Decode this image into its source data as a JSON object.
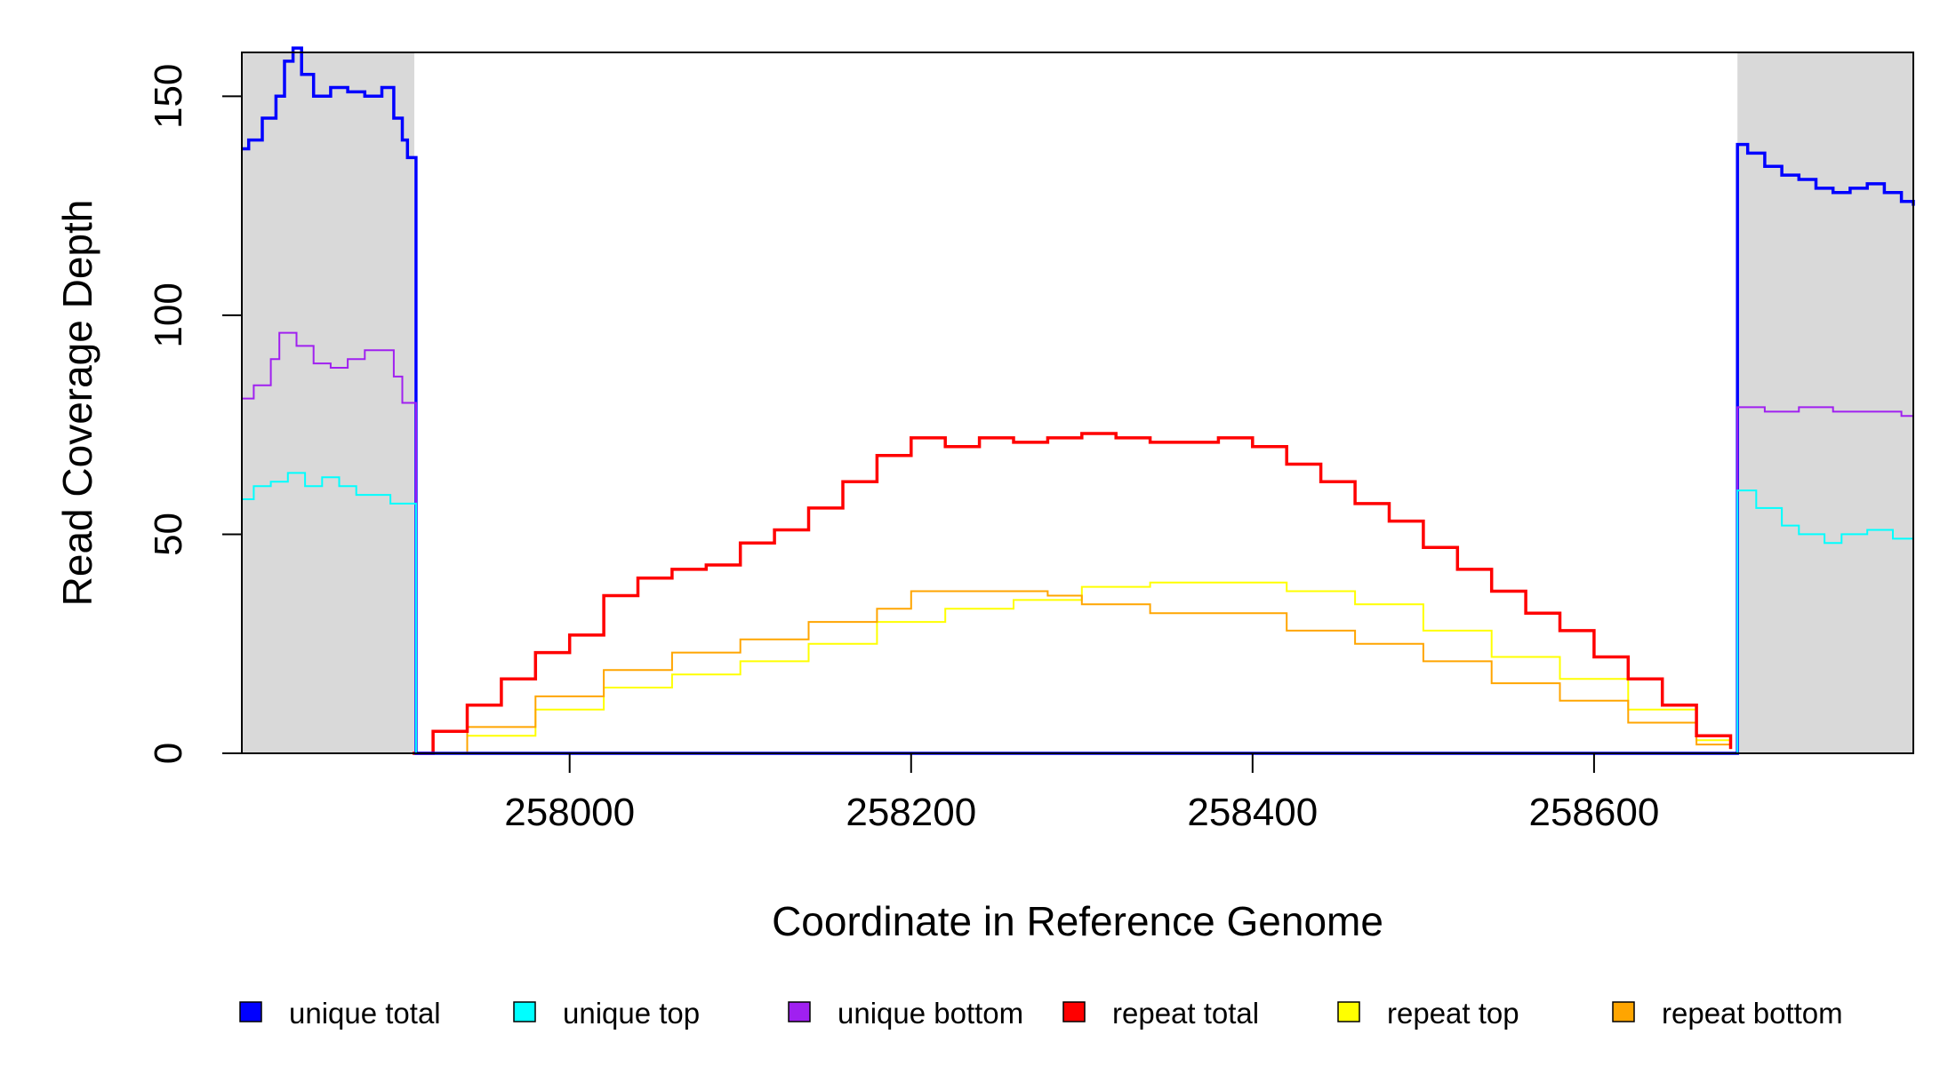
{
  "chart_data": {
    "type": "line",
    "title": "",
    "xlabel": "Coordinate in Reference Genome",
    "ylabel": "Read Coverage Depth",
    "xlim": [
      257808,
      258787
    ],
    "ylim": [
      0,
      160
    ],
    "x_ticks": [
      258000,
      258200,
      258400,
      258600
    ],
    "x_tick_labels": [
      "258000",
      "258200",
      "258400",
      "258600"
    ],
    "y_ticks": [
      0,
      50,
      100,
      150
    ],
    "y_tick_labels": [
      "0",
      "50",
      "100",
      "150"
    ],
    "grid": false,
    "legend_position": "bottom",
    "shaded_regions": [
      {
        "x_start": 257808,
        "x_end": 257909,
        "color": "#d9d9d9"
      },
      {
        "x_start": 258684,
        "x_end": 258787,
        "color": "#d9d9d9"
      }
    ],
    "series": [
      {
        "name": "unique total",
        "color": "#0000ff",
        "width": 3.5,
        "draw_order": 4,
        "points": [
          [
            257808,
            138
          ],
          [
            257812,
            140
          ],
          [
            257820,
            145
          ],
          [
            257828,
            150
          ],
          [
            257833,
            158
          ],
          [
            257838,
            161
          ],
          [
            257843,
            155
          ],
          [
            257850,
            150
          ],
          [
            257860,
            152
          ],
          [
            257870,
            151
          ],
          [
            257880,
            150
          ],
          [
            257890,
            152
          ],
          [
            257897,
            145
          ],
          [
            257902,
            140
          ],
          [
            257905,
            136
          ],
          [
            257909,
            136
          ],
          [
            257910,
            0
          ],
          [
            258683,
            0
          ],
          [
            258684,
            139
          ],
          [
            258690,
            137
          ],
          [
            258700,
            134
          ],
          [
            258710,
            132
          ],
          [
            258720,
            131
          ],
          [
            258730,
            129
          ],
          [
            258740,
            128
          ],
          [
            258750,
            129
          ],
          [
            258760,
            130
          ],
          [
            258770,
            128
          ],
          [
            258780,
            126
          ],
          [
            258787,
            125
          ]
        ]
      },
      {
        "name": "unique top",
        "color": "#00ffff",
        "width": 2,
        "draw_order": 6,
        "points": [
          [
            257808,
            58
          ],
          [
            257815,
            61
          ],
          [
            257825,
            62
          ],
          [
            257835,
            64
          ],
          [
            257845,
            61
          ],
          [
            257855,
            63
          ],
          [
            257865,
            61
          ],
          [
            257875,
            59
          ],
          [
            257885,
            59
          ],
          [
            257895,
            57
          ],
          [
            257909,
            57
          ],
          [
            257910,
            0
          ],
          [
            258683,
            0
          ],
          [
            258684,
            60
          ],
          [
            258695,
            56
          ],
          [
            258710,
            52
          ],
          [
            258720,
            50
          ],
          [
            258735,
            48
          ],
          [
            258745,
            50
          ],
          [
            258760,
            51
          ],
          [
            258775,
            49
          ],
          [
            258787,
            49
          ]
        ]
      },
      {
        "name": "unique bottom",
        "color": "#a020f0",
        "width": 2,
        "draw_order": 5,
        "points": [
          [
            257808,
            81
          ],
          [
            257815,
            84
          ],
          [
            257825,
            90
          ],
          [
            257830,
            96
          ],
          [
            257840,
            93
          ],
          [
            257850,
            89
          ],
          [
            257860,
            88
          ],
          [
            257870,
            90
          ],
          [
            257880,
            92
          ],
          [
            257890,
            92
          ],
          [
            257897,
            86
          ],
          [
            257902,
            80
          ],
          [
            257909,
            80
          ],
          [
            257910,
            0
          ],
          [
            258683,
            0
          ],
          [
            258684,
            79
          ],
          [
            258700,
            78
          ],
          [
            258720,
            79
          ],
          [
            258740,
            78
          ],
          [
            258760,
            78
          ],
          [
            258780,
            77
          ],
          [
            258787,
            77
          ]
        ]
      },
      {
        "name": "repeat total",
        "color": "#ff0000",
        "width": 3.5,
        "draw_order": 3,
        "points": [
          [
            257908,
            0
          ],
          [
            257920,
            5
          ],
          [
            257940,
            11
          ],
          [
            257960,
            17
          ],
          [
            257980,
            23
          ],
          [
            258000,
            27
          ],
          [
            258020,
            36
          ],
          [
            258040,
            40
          ],
          [
            258060,
            42
          ],
          [
            258080,
            43
          ],
          [
            258100,
            48
          ],
          [
            258120,
            51
          ],
          [
            258140,
            56
          ],
          [
            258160,
            62
          ],
          [
            258180,
            68
          ],
          [
            258200,
            72
          ],
          [
            258220,
            70
          ],
          [
            258240,
            72
          ],
          [
            258260,
            71
          ],
          [
            258280,
            72
          ],
          [
            258300,
            73
          ],
          [
            258320,
            72
          ],
          [
            258340,
            71
          ],
          [
            258360,
            71
          ],
          [
            258380,
            72
          ],
          [
            258400,
            70
          ],
          [
            258420,
            66
          ],
          [
            258440,
            62
          ],
          [
            258460,
            57
          ],
          [
            258480,
            53
          ],
          [
            258500,
            47
          ],
          [
            258520,
            42
          ],
          [
            258540,
            37
          ],
          [
            258560,
            32
          ],
          [
            258580,
            28
          ],
          [
            258600,
            22
          ],
          [
            258620,
            17
          ],
          [
            258640,
            11
          ],
          [
            258660,
            4
          ],
          [
            258680,
            1
          ]
        ]
      },
      {
        "name": "repeat top",
        "color": "#ffff00",
        "width": 2,
        "draw_order": 1,
        "points": [
          [
            257908,
            0
          ],
          [
            257940,
            4
          ],
          [
            257980,
            10
          ],
          [
            258020,
            15
          ],
          [
            258060,
            18
          ],
          [
            258100,
            21
          ],
          [
            258140,
            25
          ],
          [
            258180,
            30
          ],
          [
            258220,
            33
          ],
          [
            258260,
            35
          ],
          [
            258300,
            38
          ],
          [
            258340,
            39
          ],
          [
            258380,
            39
          ],
          [
            258420,
            37
          ],
          [
            258460,
            34
          ],
          [
            258500,
            28
          ],
          [
            258540,
            22
          ],
          [
            258580,
            17
          ],
          [
            258620,
            10
          ],
          [
            258660,
            3
          ],
          [
            258680,
            1
          ]
        ]
      },
      {
        "name": "repeat bottom",
        "color": "#ffa500",
        "width": 2,
        "draw_order": 2,
        "points": [
          [
            257908,
            0
          ],
          [
            257940,
            6
          ],
          [
            257980,
            13
          ],
          [
            258020,
            19
          ],
          [
            258060,
            23
          ],
          [
            258100,
            26
          ],
          [
            258140,
            30
          ],
          [
            258180,
            33
          ],
          [
            258200,
            37
          ],
          [
            258240,
            37
          ],
          [
            258280,
            36
          ],
          [
            258300,
            34
          ],
          [
            258340,
            32
          ],
          [
            258380,
            32
          ],
          [
            258420,
            28
          ],
          [
            258460,
            25
          ],
          [
            258500,
            21
          ],
          [
            258540,
            16
          ],
          [
            258580,
            12
          ],
          [
            258620,
            7
          ],
          [
            258660,
            2
          ],
          [
            258680,
            1
          ]
        ]
      }
    ]
  }
}
